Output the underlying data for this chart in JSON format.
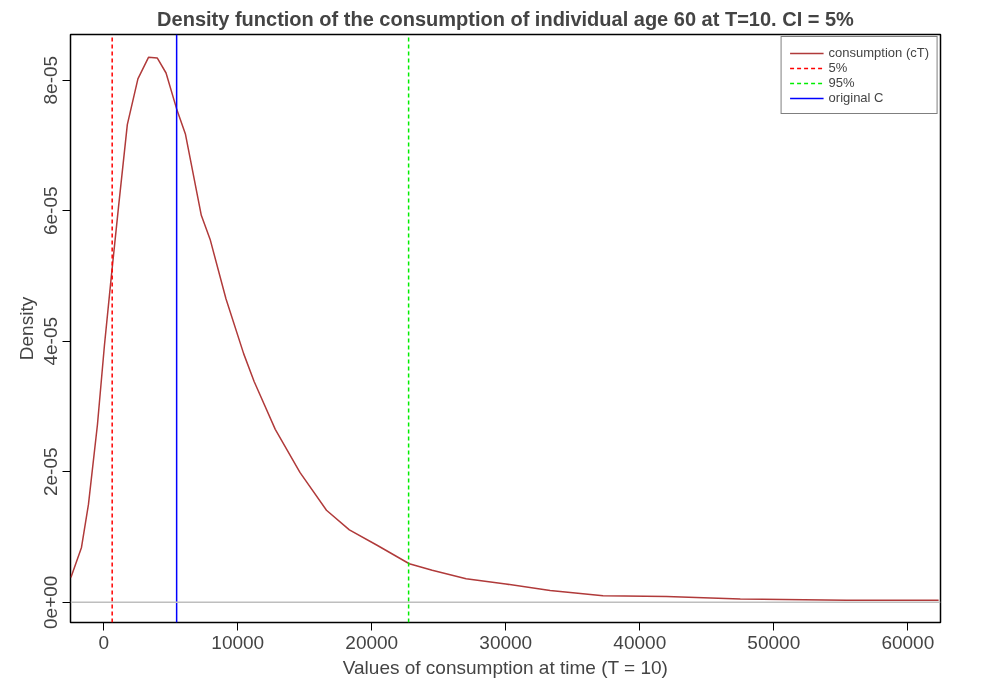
{
  "chart_data": {
    "type": "line",
    "title": "Density function of the consumption of individual age 60 at T=10. CI = 5%",
    "xlabel": "Values of consumption at time (T = 10)",
    "ylabel": "Density",
    "x": [
      -2450,
      -1660,
      -1140,
      -470,
      50,
      580,
      1100,
      1760,
      2550,
      3340,
      3990,
      4650,
      5440,
      6100,
      7280,
      7940,
      9120,
      10440,
      11230,
      12800,
      14640,
      16620,
      18330,
      20430,
      22800,
      24510,
      27040,
      30000,
      33310,
      37260,
      42000,
      47500,
      55400,
      62300
    ],
    "series": [
      {
        "name": "consumption (cT)",
        "color": "#b03a3a",
        "values": [
          3.8e-06,
          8.4e-06,
          1.5e-05,
          2.72e-05,
          3.93e-05,
          5.02e-05,
          6.05e-05,
          7.32e-05,
          8.02e-05,
          8.35e-05,
          8.34e-05,
          8.11e-05,
          7.56e-05,
          7.17e-05,
          5.93e-05,
          5.56e-05,
          4.65e-05,
          3.81e-05,
          3.38e-05,
          2.65e-05,
          1.99e-05,
          1.41e-05,
          1.11e-05,
          8.7e-06,
          5.9e-06,
          4.9e-06,
          3.6e-06,
          2.8e-06,
          1.8e-06,
          1e-06,
          9e-07,
          5e-07,
          3e-07,
          3e-07
        ]
      },
      {
        "name": "5%",
        "color": "#ff0000",
        "line_style": "dashed",
        "x": [
          630,
          630
        ],
        "values": [
          -3.1e-06,
          8.7e-05
        ]
      },
      {
        "name": "95%",
        "color": "#00ee00",
        "line_style": "dashed",
        "x": [
          22750,
          22750
        ],
        "values": [
          -3.1e-06,
          8.7e-05
        ]
      },
      {
        "name": "original C",
        "color": "#0000ff",
        "x": [
          5440,
          5440
        ],
        "values": [
          -3.1e-06,
          8.7e-05
        ]
      }
    ],
    "ref_lines": [
      {
        "axis": "y",
        "value": 0,
        "color": "#bebebe",
        "line_style": "solid"
      }
    ],
    "xlim": [
      -2480,
      62440
    ],
    "ylim": [
      -3.1e-06,
      8.7e-05
    ],
    "xticks": [
      0,
      10000,
      20000,
      30000,
      40000,
      50000,
      60000
    ],
    "yticks": [
      {
        "value": 0,
        "label": "0e+00"
      },
      {
        "value": 2e-05,
        "label": "2e-05"
      },
      {
        "value": 4e-05,
        "label": "4e-05"
      },
      {
        "value": 6e-05,
        "label": "6e-05"
      },
      {
        "value": 8e-05,
        "label": "8e-05"
      }
    ],
    "grid": false,
    "legend": "top right",
    "marker": "none",
    "line_style": "solid"
  }
}
